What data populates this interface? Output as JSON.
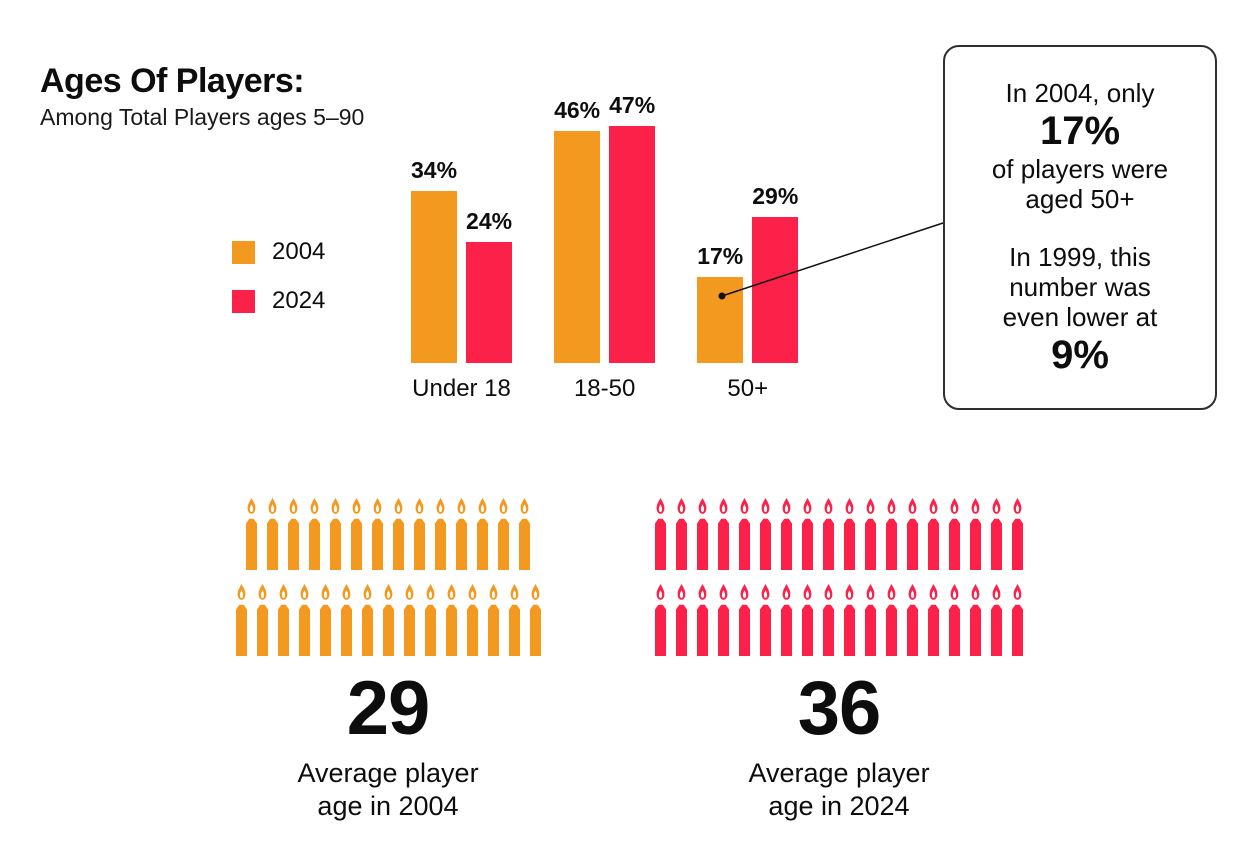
{
  "header": {
    "title": "Ages Of Players:",
    "subtitle": "Among Total Players ages 5–90"
  },
  "colors": {
    "orange": "#F3991F",
    "red": "#FC2148",
    "ink": "#0d0d0d"
  },
  "chart_data": {
    "type": "bar",
    "title": "Ages Of Players:",
    "subtitle": "Among Total Players ages 5–90",
    "categories": [
      "Under 18",
      "18-50",
      "50+"
    ],
    "series": [
      {
        "name": "2004",
        "color": "#F3991F",
        "values": [
          34,
          46,
          17
        ]
      },
      {
        "name": "2024",
        "color": "#FC2148",
        "values": [
          24,
          47,
          29
        ]
      }
    ],
    "value_suffix": "%",
    "ylim": [
      0,
      50
    ],
    "grid": false,
    "axes_hidden": true,
    "legend_position": "left-middle"
  },
  "legend": [
    {
      "label": "2004",
      "color": "#F3991F"
    },
    {
      "label": "2024",
      "color": "#FC2148"
    }
  ],
  "callout": {
    "p1": {
      "line1": "In 2004, only",
      "big": "17%",
      "line2": "of players were",
      "line3": "aged 50+"
    },
    "p2": {
      "line1": "In 1999, this",
      "line2": "number was",
      "line3": "even lower at",
      "big": "9%"
    }
  },
  "age_pictograms": [
    {
      "year": "2004",
      "color": "#F3991F",
      "candle_rows": [
        14,
        15
      ],
      "total_candles": 29,
      "value": "29",
      "caption_line1": "Average player",
      "caption_line2": "age in 2004"
    },
    {
      "year": "2024",
      "color": "#FC2148",
      "candle_rows": [
        18,
        18
      ],
      "total_candles": 36,
      "value": "36",
      "caption_line1": "Average player",
      "caption_line2": "age in 2024"
    }
  ]
}
